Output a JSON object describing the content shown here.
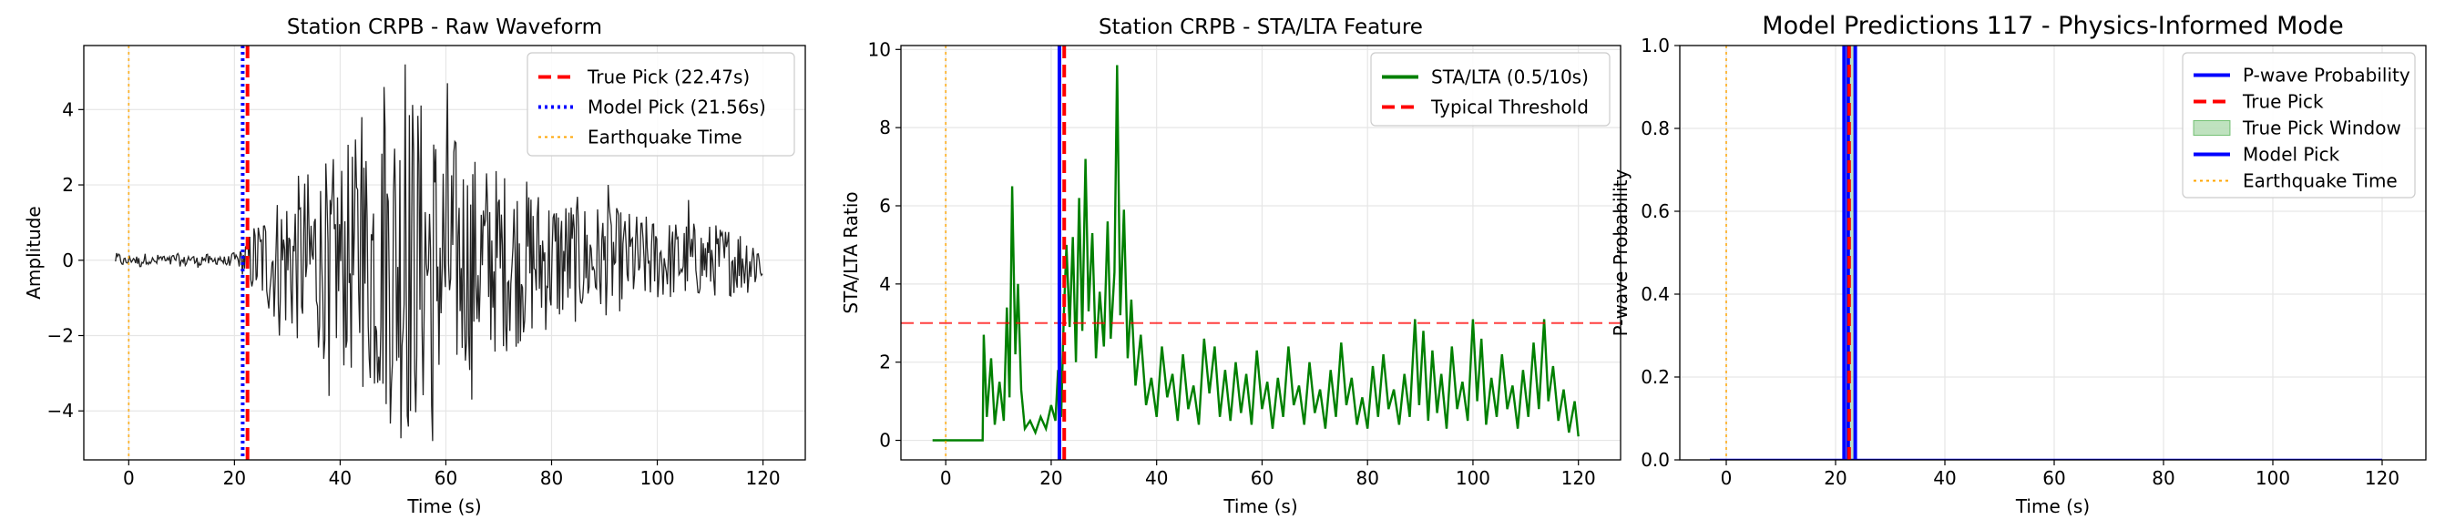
{
  "chart_data": [
    {
      "type": "line",
      "title": "Station CRPB - Raw Waveform",
      "xlabel": "Time (s)",
      "ylabel": "Amplitude",
      "xlim": [
        -8.5,
        128
      ],
      "ylim": [
        -5.3,
        5.7
      ],
      "xticks": [
        0,
        20,
        40,
        60,
        80,
        100,
        120
      ],
      "xtick_labels": [
        "0",
        "20",
        "40",
        "60",
        "80",
        "100",
        "120"
      ],
      "yticks": [
        -4,
        -2,
        0,
        2,
        4
      ],
      "ytick_labels": [
        "−4",
        "−2",
        "0",
        "2",
        "4"
      ],
      "grid": true,
      "legend_position": "top-right",
      "waveform": {
        "color": "#222222",
        "x_start": -2.5,
        "x_end": 120,
        "pre_event_amplitude": 0.15,
        "envelope": [
          [
            -2.5,
            0.15
          ],
          [
            21,
            0.2
          ],
          [
            24,
            0.9
          ],
          [
            30,
            1.7
          ],
          [
            40,
            2.3
          ],
          [
            48,
            3.3
          ],
          [
            52,
            4.0
          ],
          [
            58,
            3.2
          ],
          [
            65,
            2.3
          ],
          [
            80,
            1.5
          ],
          [
            100,
            0.9
          ],
          [
            120,
            0.7
          ]
        ],
        "peaks": [
          [
            52.3,
            5.2
          ],
          [
            48.4,
            4.6
          ],
          [
            57.6,
            -4.8
          ],
          [
            60.4,
            4.7
          ],
          [
            38,
            -3.6
          ],
          [
            44.1,
            3.8
          ],
          [
            64.9,
            -3.7
          ],
          [
            90.7,
            2.0
          ],
          [
            105.9,
            1.6
          ],
          [
            28.4,
            -2.0
          ]
        ]
      },
      "vlines": [
        {
          "name": "True Pick (22.47s)",
          "x": 22.47,
          "color": "#ff0000",
          "style": "dashed"
        },
        {
          "name": "Model Pick (21.56s)",
          "x": 21.56,
          "color": "#0000ff",
          "style": "dotted"
        },
        {
          "name": "Earthquake Time",
          "x": 0,
          "color": "#ffa500",
          "style": "dotted"
        }
      ],
      "legend": [
        {
          "label": "True Pick (22.47s)",
          "color": "#ff0000",
          "style": "dashed"
        },
        {
          "label": "Model Pick (21.56s)",
          "color": "#0000ff",
          "style": "dotted"
        },
        {
          "label": "Earthquake Time",
          "color": "#ffa500",
          "style": "dotted"
        }
      ]
    },
    {
      "type": "line",
      "title": "Station CRPB - STA/LTA Feature",
      "xlabel": "Time (s)",
      "ylabel": "STA/LTA Ratio",
      "xlim": [
        -8.5,
        128
      ],
      "ylim": [
        -0.5,
        10.1
      ],
      "xticks": [
        0,
        20,
        40,
        60,
        80,
        100,
        120
      ],
      "xtick_labels": [
        "0",
        "20",
        "40",
        "60",
        "80",
        "100",
        "120"
      ],
      "yticks": [
        0,
        2,
        4,
        6,
        8,
        10
      ],
      "ytick_labels": [
        "0",
        "2",
        "4",
        "6",
        "8",
        "10"
      ],
      "grid": true,
      "legend_position": "top-right",
      "series": [
        {
          "name": "STA/LTA (0.5/10s)",
          "color": "#008000",
          "points": [
            [
              -2.5,
              0
            ],
            [
              7,
              0
            ],
            [
              7.2,
              2.7
            ],
            [
              7.8,
              0.6
            ],
            [
              8.6,
              2.1
            ],
            [
              9.3,
              0.4
            ],
            [
              10.2,
              1.5
            ],
            [
              11,
              0.5
            ],
            [
              11.6,
              3.4
            ],
            [
              12.1,
              1.1
            ],
            [
              12.6,
              6.5
            ],
            [
              13.2,
              2.2
            ],
            [
              13.7,
              4.0
            ],
            [
              14.3,
              1.3
            ],
            [
              15,
              0.3
            ],
            [
              16,
              0.5
            ],
            [
              17,
              0.2
            ],
            [
              18,
              0.6
            ],
            [
              19,
              0.3
            ],
            [
              20,
              0.9
            ],
            [
              20.8,
              0.5
            ],
            [
              21.3,
              1.8
            ],
            [
              21.9,
              0.6
            ],
            [
              22.4,
              3.2
            ],
            [
              22.9,
              5.0
            ],
            [
              23.5,
              2.9
            ],
            [
              24.1,
              5.2
            ],
            [
              24.7,
              2.0
            ],
            [
              25.3,
              6.2
            ],
            [
              25.9,
              2.8
            ],
            [
              26.5,
              7.2
            ],
            [
              27.1,
              3.3
            ],
            [
              27.8,
              5.3
            ],
            [
              28.5,
              2.1
            ],
            [
              29.2,
              3.8
            ],
            [
              30,
              2.4
            ],
            [
              30.7,
              5.6
            ],
            [
              31.3,
              2.6
            ],
            [
              32,
              4.3
            ],
            [
              32.5,
              9.6
            ],
            [
              33.1,
              3.2
            ],
            [
              33.8,
              5.9
            ],
            [
              34.5,
              2.1
            ],
            [
              35.2,
              3.6
            ],
            [
              36,
              1.4
            ],
            [
              37,
              2.7
            ],
            [
              38,
              0.9
            ],
            [
              39,
              1.6
            ],
            [
              40,
              0.6
            ],
            [
              41,
              2.4
            ],
            [
              42,
              1.1
            ],
            [
              43,
              1.7
            ],
            [
              44,
              0.5
            ],
            [
              45,
              2.2
            ],
            [
              46,
              0.8
            ],
            [
              47,
              1.4
            ],
            [
              48,
              0.4
            ],
            [
              49,
              2.6
            ],
            [
              50,
              1.2
            ],
            [
              51,
              2.4
            ],
            [
              52,
              0.6
            ],
            [
              53,
              1.8
            ],
            [
              54,
              0.5
            ],
            [
              55,
              2.0
            ],
            [
              56,
              0.7
            ],
            [
              57,
              1.7
            ],
            [
              58,
              0.4
            ],
            [
              59,
              2.3
            ],
            [
              60,
              0.8
            ],
            [
              61,
              1.5
            ],
            [
              62,
              0.3
            ],
            [
              63,
              1.6
            ],
            [
              64,
              0.6
            ],
            [
              65,
              2.4
            ],
            [
              66,
              0.9
            ],
            [
              67,
              1.4
            ],
            [
              68,
              0.4
            ],
            [
              69,
              2.0
            ],
            [
              70,
              0.7
            ],
            [
              71,
              1.3
            ],
            [
              72,
              0.3
            ],
            [
              73,
              1.8
            ],
            [
              74,
              0.6
            ],
            [
              75,
              2.5
            ],
            [
              76,
              0.9
            ],
            [
              77,
              1.6
            ],
            [
              78,
              0.4
            ],
            [
              79,
              1.1
            ],
            [
              80,
              0.3
            ],
            [
              81,
              1.9
            ],
            [
              82,
              0.6
            ],
            [
              83,
              2.2
            ],
            [
              84,
              0.8
            ],
            [
              85,
              1.3
            ],
            [
              86,
              0.4
            ],
            [
              87,
              1.7
            ],
            [
              88,
              0.6
            ],
            [
              89,
              3.1
            ],
            [
              89.8,
              0.9
            ],
            [
              90.6,
              2.8
            ],
            [
              91.5,
              0.5
            ],
            [
              92.3,
              2.3
            ],
            [
              93.2,
              0.7
            ],
            [
              94,
              1.7
            ],
            [
              95,
              0.3
            ],
            [
              96,
              2.4
            ],
            [
              97,
              0.8
            ],
            [
              98,
              1.5
            ],
            [
              99,
              0.5
            ],
            [
              100,
              3.1
            ],
            [
              100.8,
              1.0
            ],
            [
              101.6,
              2.6
            ],
            [
              102.5,
              0.4
            ],
            [
              103.5,
              1.6
            ],
            [
              104.5,
              0.6
            ],
            [
              105.5,
              2.2
            ],
            [
              106.5,
              0.8
            ],
            [
              107.5,
              1.4
            ],
            [
              108.5,
              0.3
            ],
            [
              109.5,
              1.8
            ],
            [
              110.5,
              0.6
            ],
            [
              111.5,
              2.5
            ],
            [
              112.5,
              0.8
            ],
            [
              113.5,
              3.1
            ],
            [
              114.3,
              1.0
            ],
            [
              115.2,
              1.9
            ],
            [
              116.2,
              0.5
            ],
            [
              117.2,
              1.3
            ],
            [
              118.2,
              0.2
            ],
            [
              119.3,
              1.0
            ],
            [
              120,
              0.1
            ]
          ]
        }
      ],
      "hlines": [
        {
          "name": "Typical Threshold",
          "y": 3.0,
          "color": "#ff0000",
          "style": "dashed"
        }
      ],
      "vlines": [
        {
          "x": 21.56,
          "color": "#0000ff",
          "style": "solid"
        },
        {
          "x": 22.47,
          "color": "#ff0000",
          "style": "dashed"
        },
        {
          "x": 0,
          "color": "#ffa500",
          "style": "dotted"
        }
      ],
      "legend": [
        {
          "label": "STA/LTA (0.5/10s)",
          "color": "#008000",
          "style": "solid"
        },
        {
          "label": "Typical Threshold",
          "color": "#ff0000",
          "style": "dashed"
        }
      ]
    },
    {
      "type": "line",
      "title": "Model Predictions 117 - Physics-Informed Mode",
      "xlabel": "Time (s)",
      "ylabel": "P-wave Probability",
      "xlim": [
        -8.5,
        128
      ],
      "ylim": [
        0,
        1.0
      ],
      "xticks": [
        0,
        20,
        40,
        60,
        80,
        100,
        120
      ],
      "xtick_labels": [
        "0",
        "20",
        "40",
        "60",
        "80",
        "100",
        "120"
      ],
      "yticks": [
        0,
        0.2,
        0.4,
        0.6,
        0.8,
        1.0
      ],
      "ytick_labels": [
        "0.0",
        "0.2",
        "0.4",
        "0.6",
        "0.8",
        "1.0"
      ],
      "grid": true,
      "legend_position": "top-right",
      "series": [
        {
          "name": "P-wave Probability",
          "color": "#0000ff",
          "points": [
            [
              -3,
              0
            ],
            [
              120,
              0
            ]
          ]
        }
      ],
      "true_pick_window": {
        "x0": 21.47,
        "x1": 23.47,
        "color": "#2ca02c"
      },
      "vlines": [
        {
          "x": 21.56,
          "color": "#0000ff",
          "style": "solid"
        },
        {
          "x": 22.3,
          "color": "#0000ff",
          "style": "solid"
        },
        {
          "x": 23.6,
          "color": "#0000ff",
          "style": "solid"
        },
        {
          "x": 22.47,
          "color": "#ff0000",
          "style": "dashed"
        },
        {
          "x": 0,
          "color": "#ffa500",
          "style": "dotted"
        }
      ],
      "legend": [
        {
          "label": "P-wave Probability",
          "color": "#0000ff",
          "style": "solid"
        },
        {
          "label": "True Pick",
          "color": "#ff0000",
          "style": "dashed"
        },
        {
          "label": "True Pick Window",
          "color": "#2ca02c",
          "style": "patch"
        },
        {
          "label": "Model Pick",
          "color": "#0000ff",
          "style": "solid"
        },
        {
          "label": "Earthquake Time",
          "color": "#ffa500",
          "style": "dotted"
        }
      ]
    }
  ]
}
